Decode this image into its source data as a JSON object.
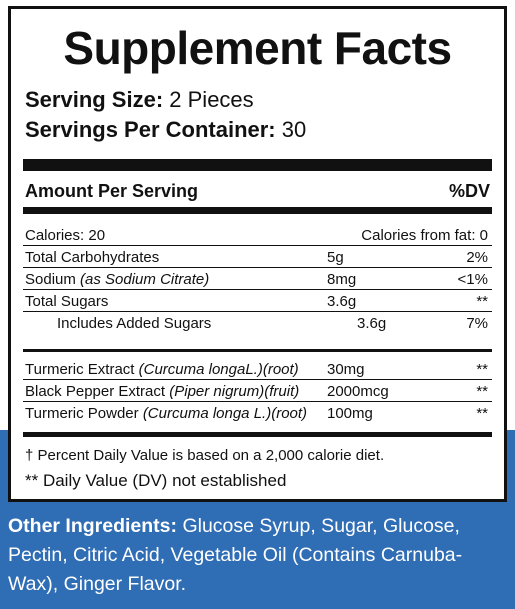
{
  "title": "Supplement Facts",
  "serving_size": {
    "label": "Serving Size:",
    "value": "2 Pieces"
  },
  "servings_per_container": {
    "label": "Servings Per Container:",
    "value": "30"
  },
  "header": {
    "amount": "Amount Per Serving",
    "dv": "%DV"
  },
  "calories": {
    "label": "Calories: 20",
    "from_fat": "Calories from fat: 0"
  },
  "nutrients": [
    {
      "name": "Total Carbohydrates",
      "amount": "5g",
      "dv": "2%"
    },
    {
      "name": "Sodium",
      "note": "(as Sodium Citrate)",
      "amount": "8mg",
      "dv": "<1%"
    },
    {
      "name": "Total Sugars",
      "amount": "3.6g",
      "dv": "**"
    },
    {
      "name": "Includes Added Sugars",
      "amount": "3.6g",
      "dv": "7%"
    }
  ],
  "ingredients": [
    {
      "name": "Turmeric Extract",
      "note": "(Curcuma longaL.)(root)",
      "amount": "30mg",
      "dv": "**"
    },
    {
      "name": "Black Pepper Extract",
      "note": "(Piper nigrum)(fruit)",
      "amount": "2000mcg",
      "dv": "**"
    },
    {
      "name": "Turmeric Powder",
      "note": "(Curcuma longa L.)(root)",
      "amount": "100mg",
      "dv": "**"
    }
  ],
  "footnotes": [
    "† Percent Daily Value is based on a 2,000 calorie diet.",
    "** Daily Value (DV) not established"
  ],
  "other_ingredients": {
    "label": "Other Ingredients:",
    "text": "Glucose Syrup, Sugar, Glucose, Pectin, Citric Acid, Vegetable Oil (Contains Carnuba-Wax), Ginger Flavor."
  }
}
